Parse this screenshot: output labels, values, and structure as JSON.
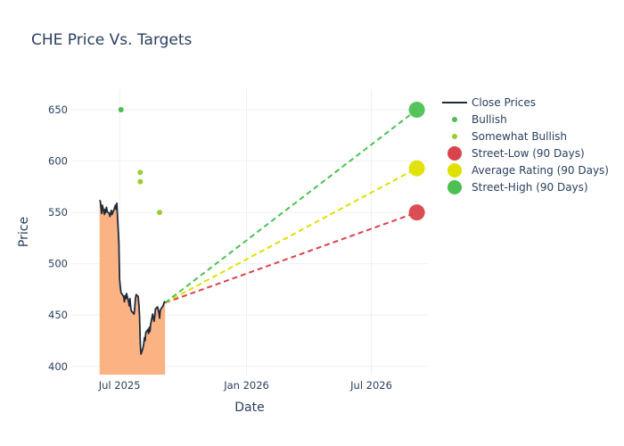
{
  "chart_data": {
    "type": "line",
    "title": "CHE Price Vs. Targets",
    "xlabel": "Date",
    "ylabel": "Price",
    "x_range": [
      "2025-04-22",
      "2026-09-21"
    ],
    "ylim": [
      392,
      670
    ],
    "x_ticks": [
      {
        "date": "2025-07-01",
        "label": "Jul 2025"
      },
      {
        "date": "2026-01-01",
        "label": "Jan 2026"
      },
      {
        "date": "2026-07-01",
        "label": "Jul 2026"
      }
    ],
    "y_ticks": [
      400,
      450,
      500,
      550,
      600,
      650
    ],
    "grid": true,
    "legend_position": "top-right",
    "colors": {
      "close": "#1f2a3c",
      "area_fill": "#fbb383",
      "bullish": "#4cbf4f",
      "somewhat_bullish": "#9acd32",
      "street_low": "#d9434b",
      "average": "#dfe000",
      "street_high": "#4cc153"
    },
    "series": [
      {
        "name": "Close Prices",
        "kind": "line",
        "points": [
          [
            "2025-06-02",
            562
          ],
          [
            "2025-06-03",
            561
          ],
          [
            "2025-06-04",
            555
          ],
          [
            "2025-06-05",
            549
          ],
          [
            "2025-06-06",
            557
          ],
          [
            "2025-06-09",
            548
          ],
          [
            "2025-06-10",
            553
          ],
          [
            "2025-06-11",
            550
          ],
          [
            "2025-06-12",
            555
          ],
          [
            "2025-06-13",
            551
          ],
          [
            "2025-06-16",
            549
          ],
          [
            "2025-06-17",
            546
          ],
          [
            "2025-06-18",
            549
          ],
          [
            "2025-06-19",
            552
          ],
          [
            "2025-06-20",
            548
          ],
          [
            "2025-06-23",
            553
          ],
          [
            "2025-06-24",
            555
          ],
          [
            "2025-06-25",
            557
          ],
          [
            "2025-06-26",
            553
          ],
          [
            "2025-06-27",
            559
          ],
          [
            "2025-06-30",
            520
          ],
          [
            "2025-07-01",
            485
          ],
          [
            "2025-07-02",
            478
          ],
          [
            "2025-07-03",
            472
          ],
          [
            "2025-07-07",
            468
          ],
          [
            "2025-07-08",
            463
          ],
          [
            "2025-07-09",
            469
          ],
          [
            "2025-07-10",
            466
          ],
          [
            "2025-07-11",
            471
          ],
          [
            "2025-07-14",
            463
          ],
          [
            "2025-07-15",
            459
          ],
          [
            "2025-07-16",
            466
          ],
          [
            "2025-07-17",
            458
          ],
          [
            "2025-07-18",
            454
          ],
          [
            "2025-07-21",
            452
          ],
          [
            "2025-07-22",
            451
          ],
          [
            "2025-07-23",
            458
          ],
          [
            "2025-07-24",
            466
          ],
          [
            "2025-07-25",
            470
          ],
          [
            "2025-07-28",
            468
          ],
          [
            "2025-07-29",
            460
          ],
          [
            "2025-07-30",
            448
          ],
          [
            "2025-07-31",
            422
          ],
          [
            "2025-08-01",
            412
          ],
          [
            "2025-08-04",
            418
          ],
          [
            "2025-08-05",
            422
          ],
          [
            "2025-08-06",
            428
          ],
          [
            "2025-08-07",
            425
          ],
          [
            "2025-08-08",
            433
          ],
          [
            "2025-08-11",
            436
          ],
          [
            "2025-08-12",
            432
          ],
          [
            "2025-08-13",
            438
          ],
          [
            "2025-08-14",
            434
          ],
          [
            "2025-08-15",
            441
          ],
          [
            "2025-08-18",
            451
          ],
          [
            "2025-08-19",
            447
          ],
          [
            "2025-08-20",
            444
          ],
          [
            "2025-08-21",
            449
          ],
          [
            "2025-08-22",
            456
          ],
          [
            "2025-08-25",
            458
          ],
          [
            "2025-08-26",
            455
          ],
          [
            "2025-08-27",
            452
          ],
          [
            "2025-08-28",
            447
          ],
          [
            "2025-08-29",
            455
          ],
          [
            "2025-09-02",
            459
          ],
          [
            "2025-09-03",
            461
          ],
          [
            "2025-09-04",
            463
          ],
          [
            "2025-09-05",
            462
          ]
        ]
      },
      {
        "name": "Bullish",
        "kind": "markers",
        "points": [
          [
            "2025-07-03",
            650
          ]
        ]
      },
      {
        "name": "Somewhat Bullish",
        "kind": "markers",
        "points": [
          [
            "2025-07-31",
            589
          ],
          [
            "2025-07-31",
            580
          ],
          [
            "2025-08-28",
            550
          ]
        ]
      },
      {
        "name": "Street-Low (90 Days)",
        "kind": "target",
        "from": [
          "2025-09-05",
          462
        ],
        "to": [
          "2026-09-05",
          550
        ]
      },
      {
        "name": "Average Rating (90 Days)",
        "kind": "target",
        "from": [
          "2025-09-05",
          462
        ],
        "to": [
          "2026-09-05",
          593
        ]
      },
      {
        "name": "Street-High (90 Days)",
        "kind": "target",
        "from": [
          "2025-09-05",
          462
        ],
        "to": [
          "2026-09-05",
          650
        ]
      }
    ]
  }
}
